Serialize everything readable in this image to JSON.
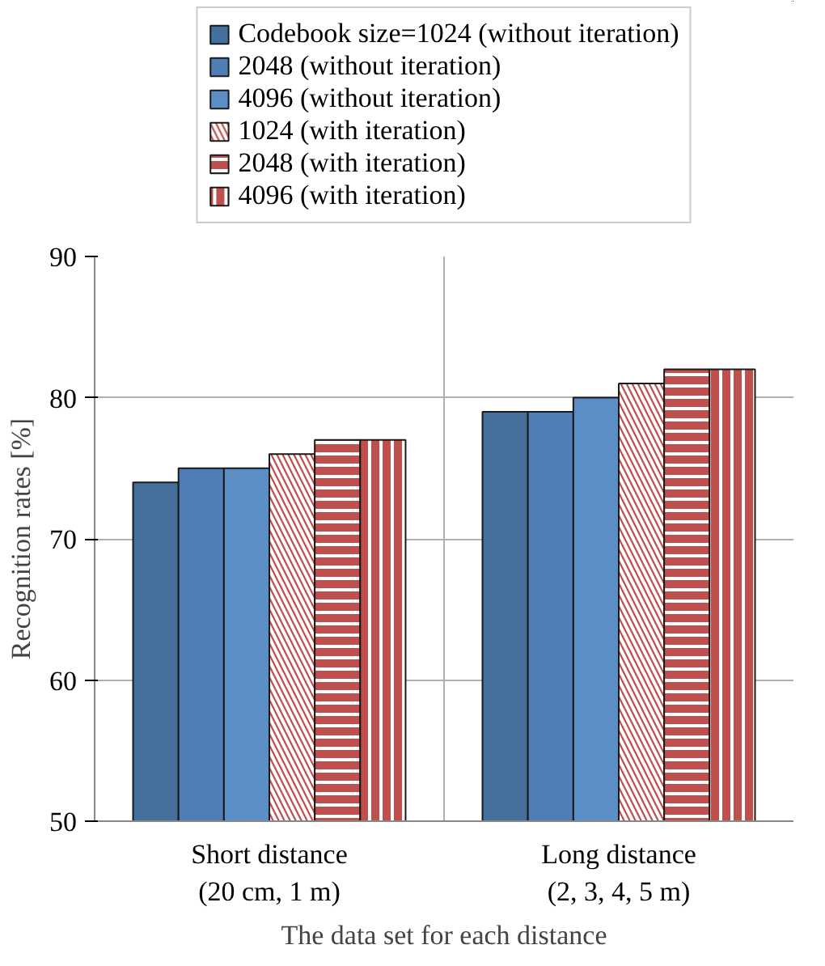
{
  "chart_data": {
    "type": "bar",
    "xlabel": "The data set for each distance",
    "ylabel": "Recognition rates [%]",
    "categories": [
      "Short distance\n(20 cm, 1 m)",
      "Long distance\n(2, 3, 4, 5 m)"
    ],
    "series": [
      {
        "name": "Codebook size=1024 (without iteration)",
        "color": "#46709c",
        "values": [
          74,
          79
        ]
      },
      {
        "name": "2048 (without iteration)",
        "color": "#4e7eb5",
        "values": [
          75,
          79
        ]
      },
      {
        "name": "4096 (without iteration)",
        "color": "#5b8ec4",
        "values": [
          75,
          80
        ]
      },
      {
        "name": "1024 (with iteration)",
        "color": "#c0504d",
        "values": [
          76,
          81
        ]
      },
      {
        "name": "2048 (with iteration)",
        "color": "#c0504d",
        "values": [
          77,
          82
        ]
      },
      {
        "name": "4096 (with iteration)",
        "color": "#c0504d",
        "values": [
          77,
          82
        ]
      }
    ],
    "ylim": [
      50,
      90
    ],
    "yticks": [
      50,
      60,
      70,
      80,
      90
    ],
    "grid": true,
    "legend": "top"
  }
}
